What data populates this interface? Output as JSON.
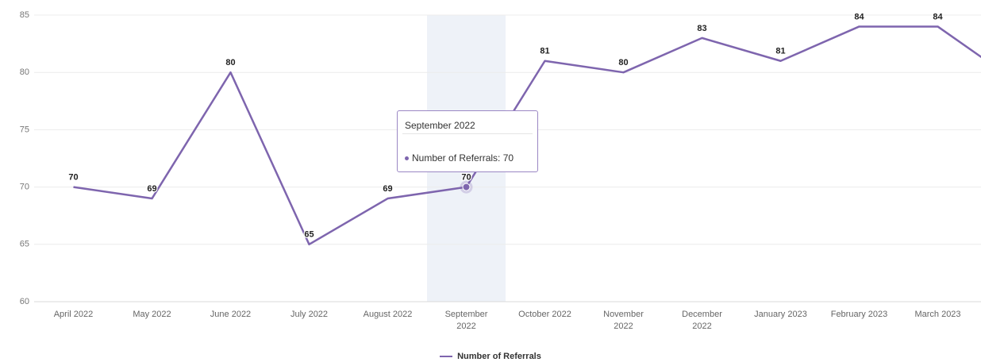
{
  "chart_data": {
    "type": "line",
    "categories": [
      "April 2022",
      "May 2022",
      "June 2022",
      "July 2022",
      "August 2022",
      "September 2022",
      "October 2022",
      "November 2022",
      "December 2022",
      "January 2023",
      "February 2023",
      "March 2023",
      null
    ],
    "series": [
      {
        "name": "Number of Referrals",
        "color": "#7e65ae",
        "values": [
          70,
          69,
          80,
          65,
          69,
          70,
          81,
          80,
          83,
          81,
          84,
          84,
          79.2
        ]
      }
    ],
    "ylim": [
      60,
      85
    ],
    "yticks": [
      60,
      65,
      70,
      75,
      80,
      85
    ],
    "grid": true,
    "tooltip": {
      "title": "September 2022",
      "text": "Number of Referrals: 70"
    }
  }
}
